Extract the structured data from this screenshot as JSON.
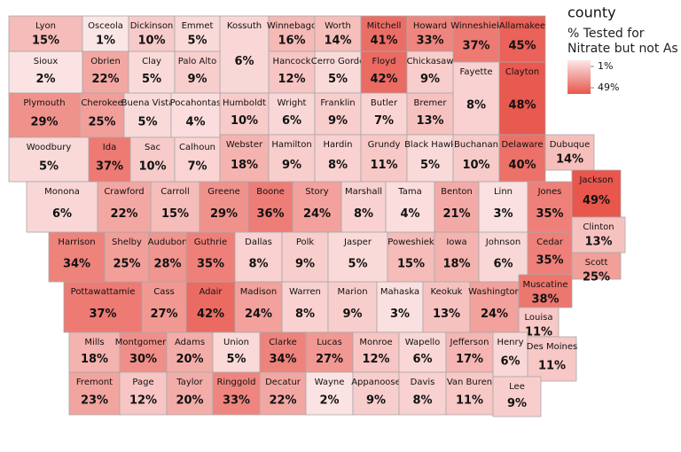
{
  "chart_data": {
    "type": "choropleth",
    "legend_title": "county",
    "legend_subtitle": "% Tested for Nitrate but not As",
    "color_range": [
      "#fbe6e6",
      "#e8564c"
    ],
    "legend_ticks": [
      {
        "value": 1,
        "label": "1%"
      },
      {
        "value": 49,
        "label": "49%"
      }
    ],
    "categories": [
      "Lyon",
      "Osceola",
      "Dickinson",
      "Emmet",
      "Kossuth",
      "Winnebago",
      "Worth",
      "Mitchell",
      "Howard",
      "Winneshiek",
      "Allamakee",
      "Sioux",
      "Obrien",
      "Clay",
      "Palo Alto",
      "Hancock",
      "Cerro Gordo",
      "Floyd",
      "Chickasaw",
      "Fayette",
      "Clayton",
      "Plymouth",
      "Cherokee",
      "Buena Vista",
      "Pocahontas",
      "Humboldt",
      "Wright",
      "Franklin",
      "Butler",
      "Bremer",
      "Woodbury",
      "Ida",
      "Sac",
      "Calhoun",
      "Webster",
      "Hamilton",
      "Hardin",
      "Grundy",
      "Black Hawk",
      "Buchanan",
      "Delaware",
      "Dubuque",
      "Monona",
      "Crawford",
      "Carroll",
      "Greene",
      "Boone",
      "Story",
      "Marshall",
      "Tama",
      "Benton",
      "Linn",
      "Jones",
      "Jackson",
      "Harrison",
      "Shelby",
      "Audubon",
      "Guthrie",
      "Dallas",
      "Polk",
      "Jasper",
      "Poweshiek",
      "Iowa",
      "Johnson",
      "Cedar",
      "Clinton",
      "Scott",
      "Pottawattamie",
      "Cass",
      "Adair",
      "Madison",
      "Warren",
      "Marion",
      "Mahaska",
      "Keokuk",
      "Washington",
      "Muscatine",
      "Louisa",
      "Mills",
      "Montgomery",
      "Adams",
      "Union",
      "Clarke",
      "Lucas",
      "Monroe",
      "Wapello",
      "Jefferson",
      "Henry",
      "Des Moines",
      "Fremont",
      "Page",
      "Taylor",
      "Ringgold",
      "Decatur",
      "Wayne",
      "Appanoose",
      "Davis",
      "Van Buren",
      "Lee"
    ],
    "values": [
      15,
      1,
      10,
      5,
      6,
      16,
      14,
      41,
      33,
      37,
      45,
      2,
      22,
      5,
      9,
      12,
      5,
      42,
      9,
      8,
      48,
      29,
      25,
      5,
      4,
      10,
      6,
      9,
      7,
      13,
      5,
      37,
      10,
      7,
      18,
      9,
      8,
      11,
      5,
      10,
      40,
      14,
      6,
      22,
      15,
      29,
      36,
      24,
      8,
      4,
      21,
      3,
      35,
      49,
      34,
      25,
      28,
      35,
      8,
      9,
      5,
      15,
      18,
      6,
      35,
      13,
      25,
      37,
      27,
      42,
      24,
      8,
      9,
      3,
      13,
      24,
      38,
      11,
      18,
      30,
      20,
      5,
      34,
      27,
      12,
      6,
      17,
      6,
      11,
      23,
      12,
      20,
      33,
      22,
      2,
      9,
      8,
      11,
      9
    ],
    "value_labels": [
      "15%",
      "1%",
      "10%",
      "5%",
      "6%",
      "16%",
      "14%",
      "41%",
      "33%",
      "37%",
      "45%",
      "2%",
      "22%",
      "5%",
      "9%",
      "12%",
      "5%",
      "42%",
      "9%",
      "8%",
      "48%",
      "29%",
      "25%",
      "5%",
      "4%",
      "10%",
      "6%",
      "9%",
      "7%",
      "13%",
      "5%",
      "37%",
      "10%",
      "7%",
      "18%",
      "9%",
      "8%",
      "11%",
      "5%",
      "10%",
      "40%",
      "14%",
      "6%",
      "22%",
      "15%",
      "29%",
      "36%",
      "24%",
      "8%",
      "4%",
      "21%",
      "3%",
      "35%",
      "49%",
      "34%",
      "25%",
      "28%",
      "35%",
      "8%",
      "9%",
      "5%",
      "15%",
      "18%",
      "6%",
      "35%",
      "13%",
      "25%",
      "37%",
      "27%",
      "42%",
      "24%",
      "8%",
      "9%",
      "3%",
      "13%",
      "24%",
      "38%",
      "11%",
      "18%",
      "30%",
      "20%",
      "5%",
      "34%",
      "27%",
      "12%",
      "6%",
      "17%",
      "6%",
      "11%",
      "23%",
      "12%",
      "20%",
      "33%",
      "22%",
      "2%",
      "9%",
      "8%",
      "11%",
      "9%"
    ]
  }
}
